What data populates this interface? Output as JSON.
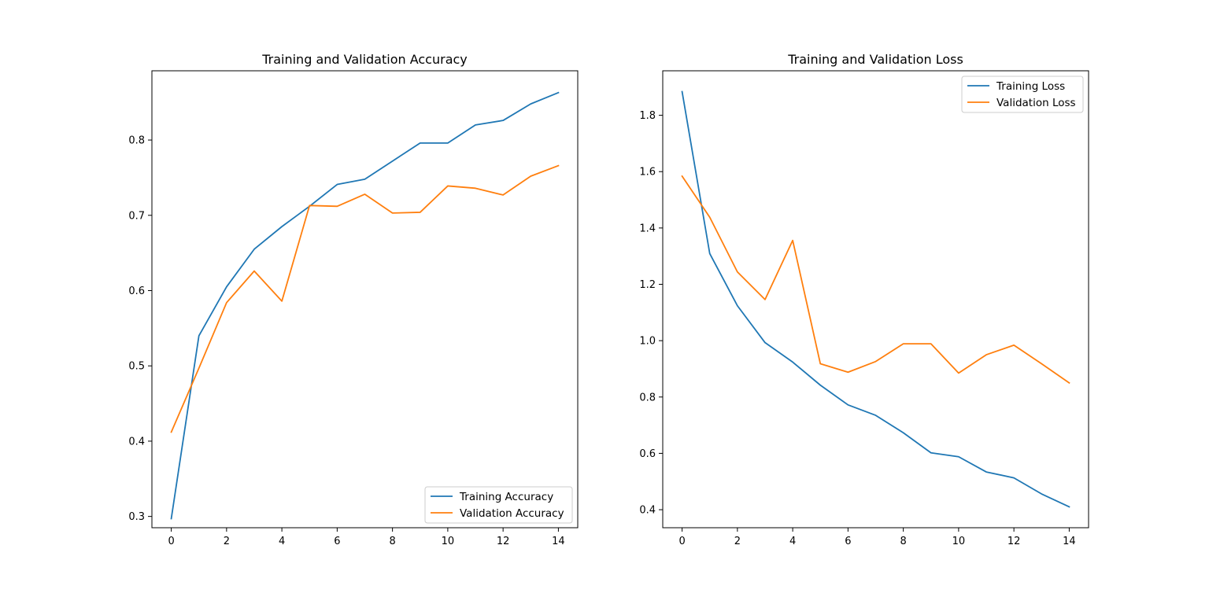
{
  "chart_data": [
    {
      "type": "line",
      "title": "Training and Validation Accuracy",
      "xlabel": "",
      "ylabel": "",
      "x": [
        0,
        1,
        2,
        3,
        4,
        5,
        6,
        7,
        8,
        9,
        10,
        11,
        12,
        13,
        14
      ],
      "xlim": [
        -0.7,
        14.7
      ],
      "ylim": [
        0.285,
        0.892
      ],
      "xticks": [
        0,
        2,
        4,
        6,
        8,
        10,
        12,
        14
      ],
      "yticks": [
        0.3,
        0.4,
        0.5,
        0.6,
        0.7,
        0.8
      ],
      "ytick_labels": [
        "0.3",
        "0.4",
        "0.5",
        "0.6",
        "0.7",
        "0.8"
      ],
      "grid": false,
      "legend_position": "bottom-right",
      "series": [
        {
          "name": "Training Accuracy",
          "color": "#1f77b4",
          "values": [
            0.297,
            0.54,
            0.605,
            0.655,
            0.685,
            0.712,
            0.741,
            0.748,
            0.772,
            0.796,
            0.796,
            0.82,
            0.826,
            0.848,
            0.863
          ]
        },
        {
          "name": "Validation Accuracy",
          "color": "#ff7f0e",
          "values": [
            0.412,
            0.497,
            0.584,
            0.626,
            0.586,
            0.713,
            0.712,
            0.728,
            0.703,
            0.704,
            0.739,
            0.736,
            0.727,
            0.752,
            0.766
          ]
        }
      ]
    },
    {
      "type": "line",
      "title": "Training and Validation Loss",
      "xlabel": "",
      "ylabel": "",
      "x": [
        0,
        1,
        2,
        3,
        4,
        5,
        6,
        7,
        8,
        9,
        10,
        11,
        12,
        13,
        14
      ],
      "xlim": [
        -0.7,
        14.7
      ],
      "ylim": [
        0.336,
        1.958
      ],
      "xticks": [
        0,
        2,
        4,
        6,
        8,
        10,
        12,
        14
      ],
      "yticks": [
        0.4,
        0.6,
        0.8,
        1.0,
        1.2,
        1.4,
        1.6,
        1.8
      ],
      "ytick_labels": [
        "0.4",
        "0.6",
        "0.8",
        "1.0",
        "1.2",
        "1.4",
        "1.6",
        "1.8"
      ],
      "grid": false,
      "legend_position": "top-right",
      "series": [
        {
          "name": "Training Loss",
          "color": "#1f77b4",
          "values": [
            1.884,
            1.309,
            1.124,
            0.993,
            0.924,
            0.842,
            0.772,
            0.735,
            0.673,
            0.602,
            0.588,
            0.534,
            0.513,
            0.456,
            0.41
          ]
        },
        {
          "name": "Validation Loss",
          "color": "#ff7f0e",
          "values": [
            1.584,
            1.438,
            1.244,
            1.146,
            1.356,
            0.918,
            0.888,
            0.926,
            0.989,
            0.989,
            0.885,
            0.95,
            0.984,
            0.918,
            0.85
          ]
        }
      ]
    }
  ]
}
